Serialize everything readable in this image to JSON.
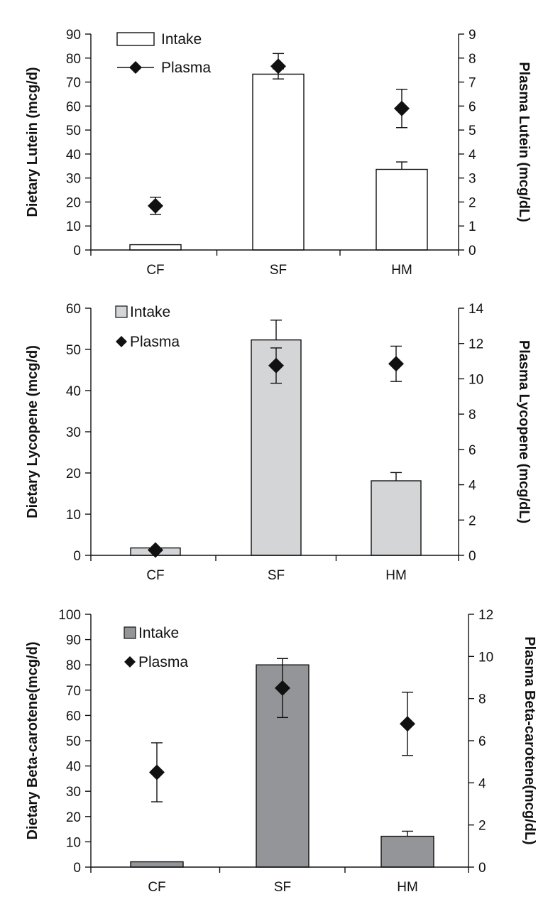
{
  "chart_data": [
    {
      "type": "bar",
      "categories": [
        "CF",
        "SF",
        "HM"
      ],
      "ylabel": "Dietary Lutein (mcg/d)",
      "y2label": "Plasma Lutein (mcg/dL)",
      "ylim": [
        0,
        90
      ],
      "yticks": [
        0,
        10,
        20,
        30,
        40,
        50,
        60,
        70,
        80,
        90
      ],
      "y2lim": [
        0,
        9
      ],
      "y2ticks": [
        0,
        1,
        2,
        3,
        4,
        5,
        6,
        7,
        8,
        9
      ],
      "legend_position": "top-left",
      "bar_color": "#ffffff",
      "series": [
        {
          "name": "Intake",
          "kind": "bar",
          "axis": "left",
          "values": [
            2.2,
            73.3,
            33.6
          ],
          "errors": [
            0,
            2.2,
            3.1
          ]
        },
        {
          "name": "Plasma",
          "kind": "diamond",
          "axis": "right",
          "values": [
            1.84,
            7.66,
            5.9
          ],
          "errors": [
            0.36,
            0.53,
            0.8
          ]
        }
      ]
    },
    {
      "type": "bar",
      "categories": [
        "CF",
        "SF",
        "HM"
      ],
      "ylabel": "Dietary Lycopene (mcg/d)",
      "y2label": "Plasma Lycopene (mcg/dL)",
      "ylim": [
        0,
        60
      ],
      "yticks": [
        0,
        10,
        20,
        30,
        40,
        50,
        60
      ],
      "y2lim": [
        0,
        14
      ],
      "y2ticks": [
        0,
        2,
        4,
        6,
        8,
        10,
        12,
        14
      ],
      "legend_position": "top-left",
      "bar_color": "#d4d5d7",
      "series": [
        {
          "name": "Intake",
          "kind": "bar",
          "axis": "left",
          "values": [
            1.8,
            52.3,
            18.1
          ],
          "errors": [
            0,
            4.8,
            2
          ]
        },
        {
          "name": "Plasma",
          "kind": "diamond",
          "axis": "right",
          "values": [
            0.3,
            10.75,
            10.85
          ],
          "errors": [
            0,
            1.0,
            1.0
          ]
        }
      ]
    },
    {
      "type": "bar",
      "categories": [
        "CF",
        "SF",
        "HM"
      ],
      "ylabel": "Dietary Beta-carotene(mcg/d)",
      "y2label": "Plasma Beta-carotene(mcg/dL)",
      "ylim": [
        0,
        100
      ],
      "yticks": [
        0,
        10,
        20,
        30,
        40,
        50,
        60,
        70,
        80,
        90,
        100
      ],
      "y2lim": [
        0,
        12
      ],
      "y2ticks": [
        0,
        2,
        4,
        6,
        8,
        10,
        12
      ],
      "legend_position": "top-left",
      "bar_color": "#939598",
      "series": [
        {
          "name": "Intake",
          "kind": "bar",
          "axis": "left",
          "values": [
            2.1,
            80.0,
            12.2
          ],
          "errors": [
            0,
            0,
            2.0
          ]
        },
        {
          "name": "Plasma",
          "kind": "diamond",
          "axis": "right",
          "values": [
            4.5,
            8.5,
            6.8
          ],
          "errors": [
            1.4,
            1.4,
            1.5
          ]
        }
      ]
    }
  ]
}
